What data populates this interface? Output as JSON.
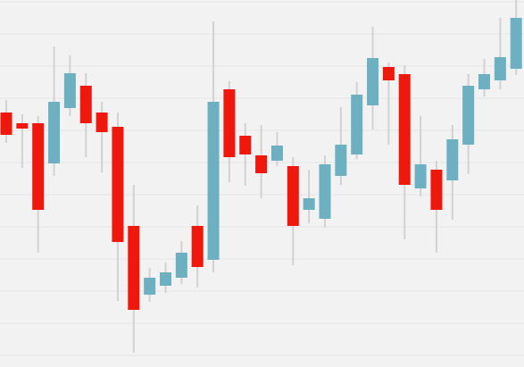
{
  "chart_data": {
    "type": "candlestick",
    "open": [
      285,
      273,
      273,
      228,
      290,
      315,
      285,
      269,
      158,
      81,
      91,
      100,
      158,
      120,
      311,
      259,
      237,
      231,
      225,
      176,
      166,
      214,
      238,
      293,
      336,
      328,
      200,
      221,
      209,
      249,
      311,
      321,
      334
    ],
    "high": [
      299,
      283,
      281,
      359,
      349,
      329,
      297,
      285,
      204,
      111,
      117,
      141,
      181,
      387,
      320,
      273,
      271,
      263,
      235,
      221,
      237,
      291,
      319,
      381,
      341,
      338,
      281,
      231,
      271,
      328,
      345,
      391,
      411
    ],
    "low": [
      251,
      223,
      128,
      214,
      281,
      235,
      218,
      74,
      16,
      73,
      83,
      93,
      89,
      106,
      207,
      203,
      189,
      225,
      114,
      161,
      156,
      204,
      233,
      266,
      249,
      143,
      191,
      128,
      165,
      216,
      303,
      311,
      327
    ],
    "close": [
      260,
      267,
      176,
      297,
      329,
      273,
      263,
      140,
      64,
      100,
      106,
      128,
      112,
      297,
      235,
      238,
      217,
      248,
      158,
      189,
      227,
      249,
      305,
      346,
      321,
      204,
      227,
      176,
      255,
      315,
      328,
      347,
      391
    ],
    "up_color": "#6cb0c1",
    "down_color": "#f0170c",
    "wick_color": "#d2d2d2",
    "ylim": [
      0,
      411
    ],
    "yticks": [
      13,
      49,
      85,
      121,
      157,
      193,
      229,
      265,
      301,
      337,
      373,
      409
    ],
    "grid": true
  }
}
